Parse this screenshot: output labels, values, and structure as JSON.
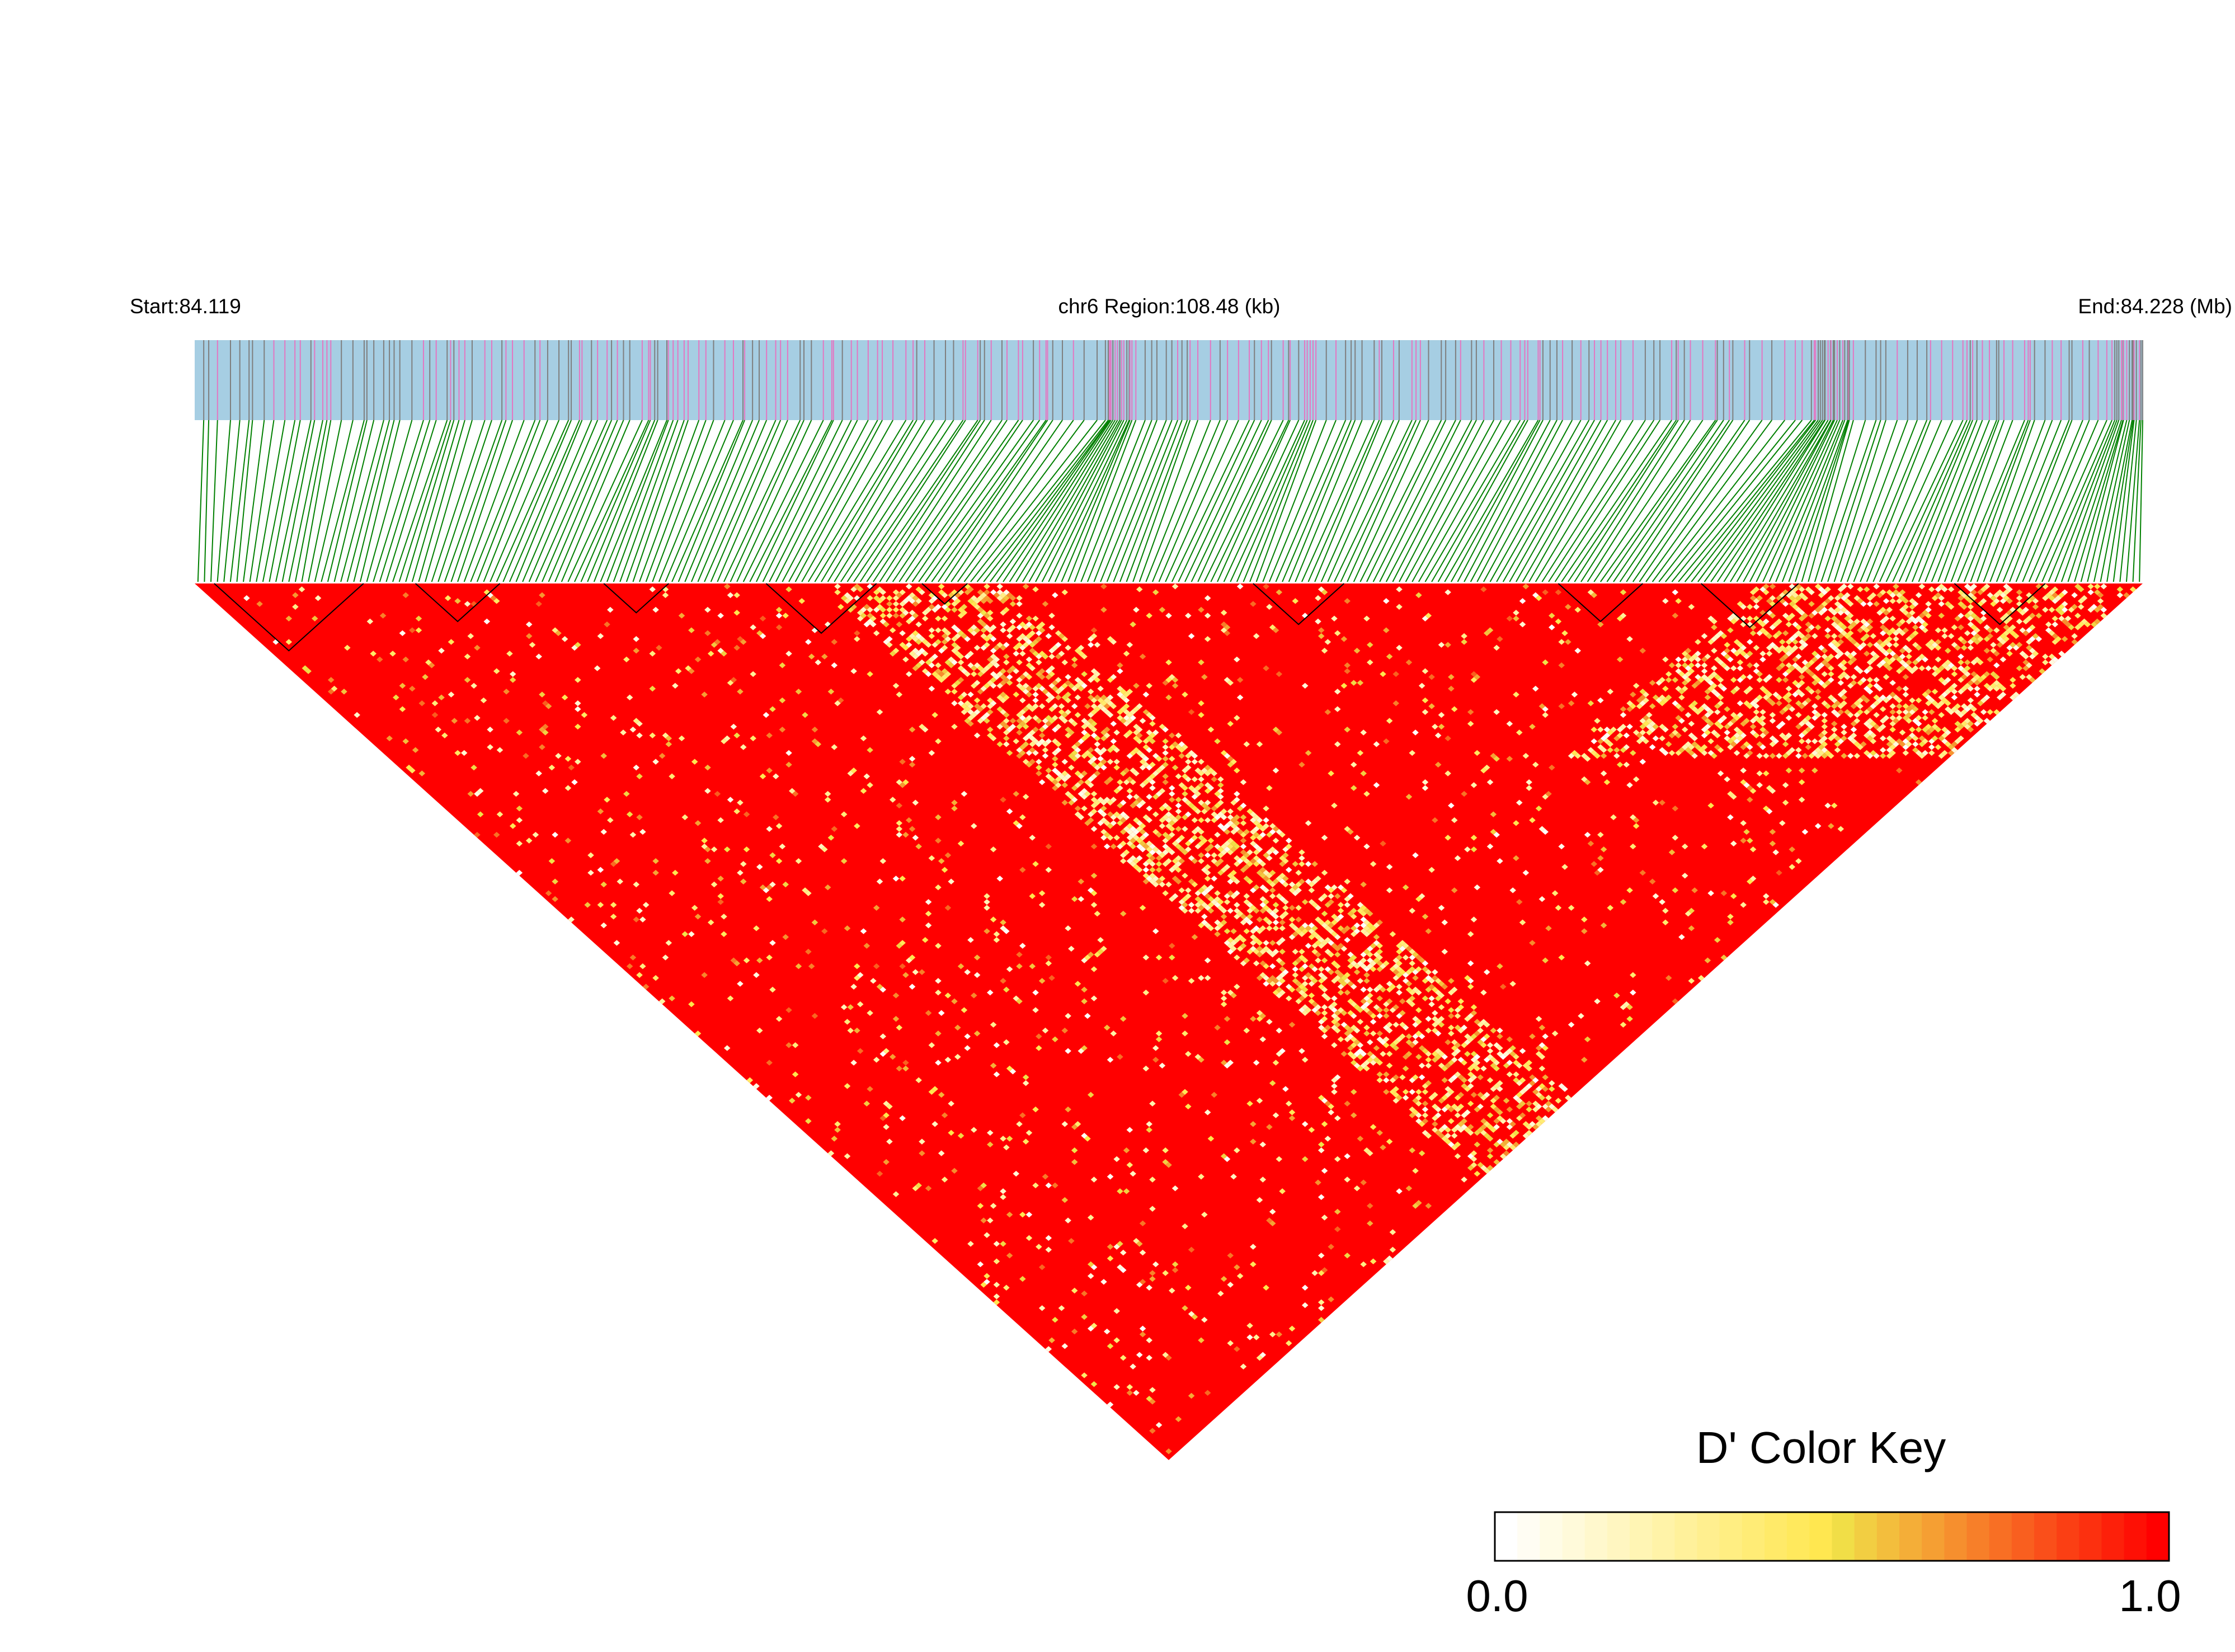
{
  "chart_data": {
    "type": "heatmap",
    "chromosome": "chr6",
    "start_label": "Start:84.119",
    "region_label": "chr6 Region:108.48 (kb)",
    "end_label": "End:84.228 (Mb)",
    "start_mb": 84.119,
    "end_mb": 84.228,
    "region_kb": 108.48,
    "metric": "D'",
    "color_key": {
      "title": "D' Color Key",
      "min_label": "0.0",
      "max_label": "1.0",
      "min": 0.0,
      "max": 1.0,
      "colors": [
        "#ffffff",
        "#f0e64a",
        "#ff0000"
      ]
    },
    "colors": {
      "snp_track_bg": "#a6cee3",
      "snp_tick_pink": "#e377c2",
      "snp_tick_gray": "#7f7f7f",
      "connector": "#008000",
      "high_ld": "#ff0000",
      "mid_ld": "#f0e64a",
      "low_ld": "#ffffff",
      "block_outline": "#000000"
    },
    "snp_count": 300,
    "grid": false,
    "legend_position": "bottom-right"
  }
}
